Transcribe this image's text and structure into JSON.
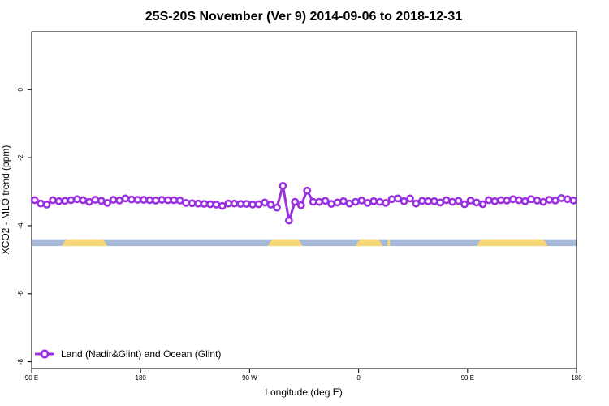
{
  "chart_data": {
    "type": "line",
    "title": "25S-20S November (Ver 9)   2014-09-06 to 2018-12-31",
    "xlabel": "Longitude (deg E)",
    "ylabel": "XCO2 - MLO trend (ppm)",
    "xlim": [
      90,
      450
    ],
    "ylim": [
      -8.2,
      1.7
    ],
    "x_ticks": [
      {
        "value": 90,
        "label": "90 E"
      },
      {
        "value": 162,
        "label": "180"
      },
      {
        "value": 234,
        "label": "90 W"
      },
      {
        "value": 306,
        "label": "0"
      },
      {
        "value": 378,
        "label": "90 E"
      },
      {
        "value": 450,
        "label": "180"
      }
    ],
    "y_ticks": [
      {
        "value": 0,
        "label": "0"
      },
      {
        "value": -2,
        "label": "-2"
      },
      {
        "value": -4,
        "label": "-4"
      },
      {
        "value": -6,
        "label": "-6"
      },
      {
        "value": -8,
        "label": "-8"
      }
    ],
    "grid": false,
    "legend_position": "bottom-left",
    "series": [
      {
        "name": "Land (Nadir&Glint) and Ocean (Glint)",
        "color": "#9b30e0",
        "x": [
          92,
          96,
          100,
          104,
          108,
          112,
          116,
          120,
          124,
          128,
          132,
          136,
          140,
          144,
          148,
          152,
          156,
          160,
          164,
          168,
          172,
          176,
          180,
          184,
          188,
          192,
          196,
          200,
          204,
          208,
          212,
          216,
          220,
          224,
          228,
          232,
          236,
          240,
          244,
          248,
          252,
          256,
          260,
          264,
          268,
          272,
          276,
          280,
          284,
          288,
          292,
          296,
          300,
          304,
          308,
          312,
          316,
          320,
          324,
          328,
          332,
          336,
          340,
          344,
          348,
          352,
          356,
          360,
          364,
          368,
          372,
          376,
          380,
          384,
          388,
          392,
          396,
          400,
          404,
          408,
          412,
          416,
          420,
          424,
          428,
          432,
          436,
          440,
          444,
          448
        ],
        "values": [
          -3.25,
          -3.35,
          -3.38,
          -3.25,
          -3.28,
          -3.27,
          -3.25,
          -3.22,
          -3.25,
          -3.3,
          -3.24,
          -3.27,
          -3.33,
          -3.24,
          -3.26,
          -3.2,
          -3.23,
          -3.24,
          -3.24,
          -3.25,
          -3.26,
          -3.24,
          -3.25,
          -3.25,
          -3.26,
          -3.33,
          -3.34,
          -3.35,
          -3.36,
          -3.37,
          -3.38,
          -3.42,
          -3.35,
          -3.35,
          -3.36,
          -3.36,
          -3.38,
          -3.37,
          -3.32,
          -3.38,
          -3.47,
          -2.83,
          -3.85,
          -3.3,
          -3.4,
          -2.97,
          -3.3,
          -3.3,
          -3.27,
          -3.36,
          -3.32,
          -3.28,
          -3.35,
          -3.3,
          -3.26,
          -3.33,
          -3.28,
          -3.3,
          -3.33,
          -3.22,
          -3.2,
          -3.28,
          -3.2,
          -3.35,
          -3.27,
          -3.28,
          -3.28,
          -3.32,
          -3.25,
          -3.3,
          -3.27,
          -3.37,
          -3.26,
          -3.32,
          -3.37,
          -3.25,
          -3.28,
          -3.25,
          -3.26,
          -3.22,
          -3.25,
          -3.28,
          -3.22,
          -3.26,
          -3.3,
          -3.24,
          -3.26,
          -3.19,
          -3.22,
          -3.26
        ]
      }
    ],
    "surface_band": {
      "y_top": -4.4,
      "y_bottom": -4.6,
      "ocean_color": "#a7b9d9",
      "land_color": "#f8d774",
      "land_segments": [
        [
          110,
          140
        ],
        [
          246,
          269
        ],
        [
          304,
          322
        ],
        [
          325,
          327
        ],
        [
          384,
          431
        ]
      ]
    }
  }
}
